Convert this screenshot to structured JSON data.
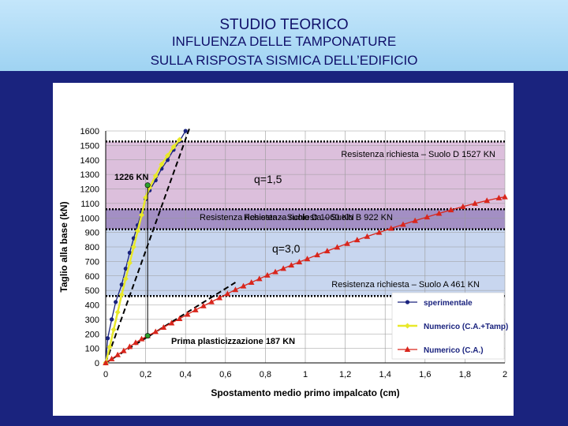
{
  "header": {
    "title": "STUDIO TEORICO",
    "subtitle1": "INFLUENZA DELLE TAMPONATURE",
    "subtitle2": "SULLA RISPOSTA SISMICA DELL’EDIFICIO"
  },
  "colors": {
    "background": "#1a237e",
    "header_bg": "#b3ddf7",
    "zone_high": "#dcbfdc",
    "zone_mid": "#a38fc4",
    "zone_low": "#c8d6ef",
    "sperimentale": "#1a237e",
    "numerico_tamp": "#e8e82a",
    "numerico_ca": "#d9261c"
  },
  "chart_data": {
    "type": "line",
    "xlabel": "Spostamento medio primo impalcato (cm)",
    "ylabel": "Taglio alla base (kN)",
    "xlim": [
      0,
      2
    ],
    "ylim": [
      0,
      1600
    ],
    "xticks": [
      0,
      0.2,
      0.4,
      0.6,
      0.8,
      1,
      1.2,
      1.4,
      1.6,
      1.8,
      2
    ],
    "xtick_labels": [
      "0",
      "0,2",
      "0,4",
      "0,6",
      "0,8",
      "1",
      "1,2",
      "1,4",
      "1,6",
      "1,8",
      "2"
    ],
    "yticks": [
      0,
      100,
      200,
      300,
      400,
      500,
      600,
      700,
      800,
      900,
      1000,
      1100,
      1200,
      1300,
      1400,
      1500,
      1600
    ],
    "grid": true,
    "legend_position": "bottom-right",
    "zones": [
      {
        "from": 1060,
        "to": 1527,
        "color": "#dcbfdc"
      },
      {
        "from": 922,
        "to": 1060,
        "color": "#a38fc4"
      },
      {
        "from": 461,
        "to": 922,
        "color": "#c8d6ef"
      }
    ],
    "threshold_lines": [
      1527,
      1060,
      922,
      461
    ],
    "series": [
      {
        "name": "sperimentale",
        "color": "#1a237e",
        "marker": "circle",
        "x": [
          0,
          0.01,
          0.03,
          0.05,
          0.08,
          0.1,
          0.12,
          0.14,
          0.16,
          0.18,
          0.2,
          0.22,
          0.25,
          0.28,
          0.31,
          0.34,
          0.37,
          0.4
        ],
        "y": [
          0,
          170,
          300,
          420,
          540,
          650,
          760,
          860,
          950,
          1040,
          1130,
          1190,
          1260,
          1340,
          1400,
          1470,
          1530,
          1600
        ]
      },
      {
        "name": "Numerico (C.A.+Tamp)",
        "color": "#e8e82a",
        "marker": "diamond",
        "x": [
          0,
          0.02,
          0.04,
          0.06,
          0.08,
          0.1,
          0.12,
          0.14,
          0.16,
          0.18,
          0.2,
          0.22,
          0.25,
          0.28,
          0.31,
          0.34,
          0.37
        ],
        "y": [
          0,
          110,
          230,
          350,
          470,
          580,
          690,
          800,
          910,
          1020,
          1140,
          1210,
          1290,
          1370,
          1430,
          1490,
          1540
        ]
      },
      {
        "name": "Numerico (C.A.)",
        "color": "#d9261c",
        "marker": "triangle",
        "x": [
          0,
          0.03,
          0.06,
          0.09,
          0.12,
          0.15,
          0.18,
          0.21,
          0.25,
          0.29,
          0.33,
          0.37,
          0.41,
          0.45,
          0.49,
          0.53,
          0.57,
          0.61,
          0.65,
          0.69,
          0.73,
          0.77,
          0.81,
          0.85,
          0.89,
          0.93,
          0.97,
          1.01,
          1.06,
          1.11,
          1.16,
          1.21,
          1.26,
          1.31,
          1.37,
          1.43,
          1.49,
          1.55,
          1.61,
          1.67,
          1.73,
          1.79,
          1.85,
          1.91,
          1.97,
          2.0
        ],
        "y": [
          0,
          28,
          56,
          84,
          112,
          140,
          165,
          187,
          215,
          245,
          275,
          305,
          335,
          365,
          393,
          421,
          449,
          477,
          505,
          530,
          555,
          580,
          605,
          628,
          651,
          674,
          696,
          718,
          745,
          772,
          798,
          823,
          848,
          872,
          900,
          928,
          955,
          981,
          1006,
          1031,
          1055,
          1078,
          1100,
          1120,
          1138,
          1145
        ]
      }
    ],
    "extra_lines": [
      {
        "name": "tangente iniziale C.A.",
        "color": "#000000",
        "style": "dashed",
        "x": [
          0,
          0.65
        ],
        "y": [
          0,
          555
        ]
      },
      {
        "name": "tangente iniziale C.A.+Tamp",
        "color": "#000000",
        "style": "dashed",
        "x": [
          0,
          0.42
        ],
        "y": [
          0,
          1620
        ]
      }
    ],
    "annotations": {
      "demand_d": "Resistenza richiesta – Suolo D  1527 KN",
      "demand_b": "Resistenza richiesta – Suolo D  1060 KN",
      "demand_b2": "Resistenza richiesta – Suolo B  922 KN",
      "demand_a": "Resistenza richiesta – Suolo A  461 KN",
      "q15": "q=1,5",
      "q30": "q=3,0",
      "val1226": "1226 KN",
      "first_yield": "Prima plasticizzazione 187 KN"
    },
    "markers": [
      {
        "x": 0.21,
        "y": 1226,
        "label_key": "val1226"
      },
      {
        "x": 0.21,
        "y": 187,
        "label_key": "first_yield"
      }
    ]
  }
}
